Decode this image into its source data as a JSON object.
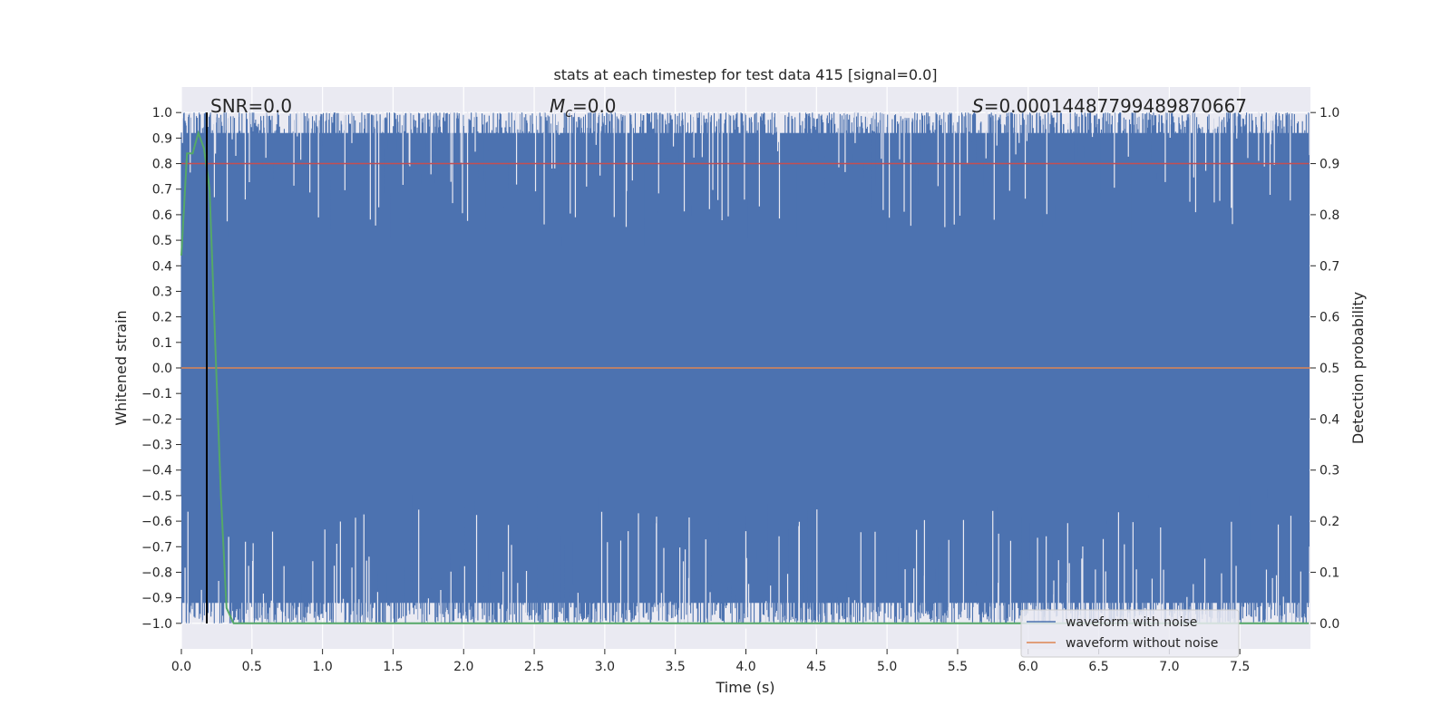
{
  "chart_data": {
    "type": "line",
    "title": "stats at each timestep for test data 415 [signal=0.0]",
    "xlabel": "Time (s)",
    "ylabel": "Whitened strain",
    "y2label": "Detection probability",
    "xlim": [
      0.0,
      8.0
    ],
    "ylim": [
      -1.1,
      1.1
    ],
    "y2lim": [
      -0.05,
      1.05
    ],
    "xticks": [
      "0.0",
      "0.5",
      "1.0",
      "1.5",
      "2.0",
      "2.5",
      "3.0",
      "3.5",
      "4.0",
      "4.5",
      "5.0",
      "5.5",
      "6.0",
      "6.5",
      "7.0",
      "7.5"
    ],
    "yticks": [
      "1.0",
      "0.9",
      "0.8",
      "0.7",
      "0.6",
      "0.5",
      "0.4",
      "0.3",
      "0.2",
      "0.1",
      "0.0",
      "−0.1",
      "−0.2",
      "−0.3",
      "−0.4",
      "−0.5",
      "−0.6",
      "−0.7",
      "−0.8",
      "−0.9",
      "−1.0"
    ],
    "y2ticks": [
      "1.0",
      "0.9",
      "0.8",
      "0.7",
      "0.6",
      "0.5",
      "0.4",
      "0.3",
      "0.2",
      "0.1",
      "0.0"
    ],
    "grid": true,
    "legend_position": "bottom-right",
    "annotations": {
      "snr": "SNR=0.0",
      "mc_symbol": "M",
      "mc_sub": "c",
      "mc_rest": "=0.0",
      "s_symbol": "S",
      "s_rest": "=0.0001448779948987066​7"
    },
    "series": [
      {
        "name": "waveform with noise",
        "axis": "left",
        "color": "#4c72b0",
        "style": "dense noise filling approximately -1.0 to 1.0 across 0.0–8.0 s"
      },
      {
        "name": "waveform without noise",
        "axis": "left",
        "color": "#dd8452",
        "x": [
          0.0,
          8.0
        ],
        "y": [
          0.0,
          0.0
        ]
      }
    ],
    "detection_probability": {
      "axis": "right",
      "color": "#55a868",
      "x": [
        0.0,
        0.04,
        0.08,
        0.12,
        0.16,
        0.2,
        0.24,
        0.28,
        0.32,
        0.37,
        0.5,
        7.99
      ],
      "y": [
        0.72,
        0.92,
        0.92,
        0.96,
        0.93,
        0.85,
        0.55,
        0.25,
        0.03,
        0.0,
        0.0,
        0.0
      ]
    },
    "threshold_line": {
      "axis": "right",
      "y": 0.9,
      "color": "#c44e52"
    },
    "marker_line": {
      "x": 0.18,
      "color": "#000000"
    }
  }
}
